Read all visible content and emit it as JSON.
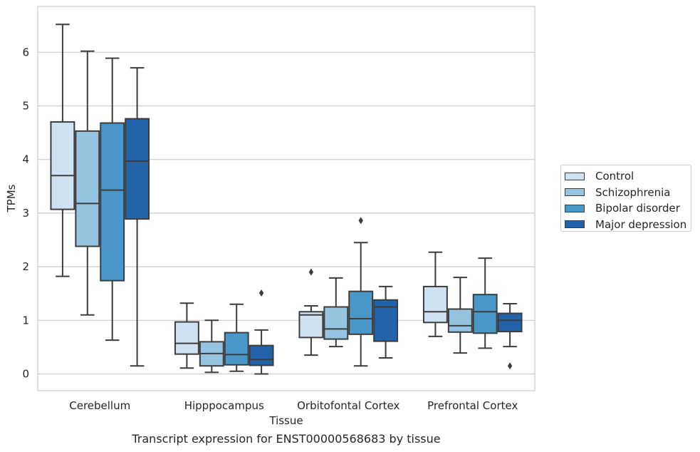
{
  "chart_data": {
    "type": "box",
    "categories": [
      "Cerebellum",
      "Hipppocampus",
      "Orbitofontal Cortex",
      "Prefrontal Cortex"
    ],
    "xlabel": "Tissue",
    "ylabel": "TPMs",
    "caption": "Transcript expression for ENST00000568683 by tissue",
    "yticks": [
      0,
      1,
      2,
      3,
      4,
      5,
      6
    ],
    "ylim": [
      -0.32,
      6.85
    ],
    "grid": true,
    "legend_position": "right",
    "series": [
      {
        "name": "Control",
        "color": "#d0e1f2",
        "boxes": [
          {
            "whisker_low": 1.82,
            "q1": 3.07,
            "median": 3.7,
            "q3": 4.7,
            "whisker_high": 6.52,
            "outliers": []
          },
          {
            "whisker_low": 0.11,
            "q1": 0.37,
            "median": 0.57,
            "q3": 0.97,
            "whisker_high": 1.32,
            "outliers": []
          },
          {
            "whisker_low": 0.35,
            "q1": 0.68,
            "median": 1.1,
            "q3": 1.16,
            "whisker_high": 1.27,
            "outliers": [
              1.9
            ]
          },
          {
            "whisker_low": 0.7,
            "q1": 0.96,
            "median": 1.16,
            "q3": 1.63,
            "whisker_high": 2.27,
            "outliers": []
          }
        ]
      },
      {
        "name": "Schizophrenia",
        "color": "#94c4df",
        "boxes": [
          {
            "whisker_low": 1.1,
            "q1": 2.38,
            "median": 3.18,
            "q3": 4.53,
            "whisker_high": 6.02,
            "outliers": []
          },
          {
            "whisker_low": 0.03,
            "q1": 0.15,
            "median": 0.38,
            "q3": 0.6,
            "whisker_high": 1.0,
            "outliers": []
          },
          {
            "whisker_low": 0.51,
            "q1": 0.65,
            "median": 0.84,
            "q3": 1.25,
            "whisker_high": 1.79,
            "outliers": []
          },
          {
            "whisker_low": 0.39,
            "q1": 0.78,
            "median": 0.9,
            "q3": 1.21,
            "whisker_high": 1.8,
            "outliers": []
          }
        ]
      },
      {
        "name": "Bipolar disorder",
        "color": "#4a98c9",
        "boxes": [
          {
            "whisker_low": 0.63,
            "q1": 1.74,
            "median": 3.43,
            "q3": 4.68,
            "whisker_high": 5.89,
            "outliers": []
          },
          {
            "whisker_low": 0.05,
            "q1": 0.17,
            "median": 0.36,
            "q3": 0.77,
            "whisker_high": 1.3,
            "outliers": []
          },
          {
            "whisker_low": 0.15,
            "q1": 0.74,
            "median": 1.03,
            "q3": 1.54,
            "whisker_high": 2.45,
            "outliers": [
              2.86
            ]
          },
          {
            "whisker_low": 0.48,
            "q1": 0.76,
            "median": 1.16,
            "q3": 1.48,
            "whisker_high": 2.16,
            "outliers": []
          }
        ]
      },
      {
        "name": "Major depression",
        "color": "#2363a9",
        "boxes": [
          {
            "whisker_low": 0.15,
            "q1": 2.89,
            "median": 3.97,
            "q3": 4.76,
            "whisker_high": 5.71,
            "outliers": []
          },
          {
            "whisker_low": 0.0,
            "q1": 0.16,
            "median": 0.27,
            "q3": 0.53,
            "whisker_high": 0.82,
            "outliers": [
              1.51
            ]
          },
          {
            "whisker_low": 0.3,
            "q1": 0.61,
            "median": 1.25,
            "q3": 1.38,
            "whisker_high": 1.63,
            "outliers": []
          },
          {
            "whisker_low": 0.51,
            "q1": 0.79,
            "median": 1.0,
            "q3": 1.13,
            "whisker_high": 1.31,
            "outliers": [
              0.15
            ]
          }
        ]
      }
    ]
  },
  "colors": {
    "grid": "#cccccc",
    "spine": "#cccccc",
    "line": "#3d3d3d",
    "text": "#262626"
  }
}
